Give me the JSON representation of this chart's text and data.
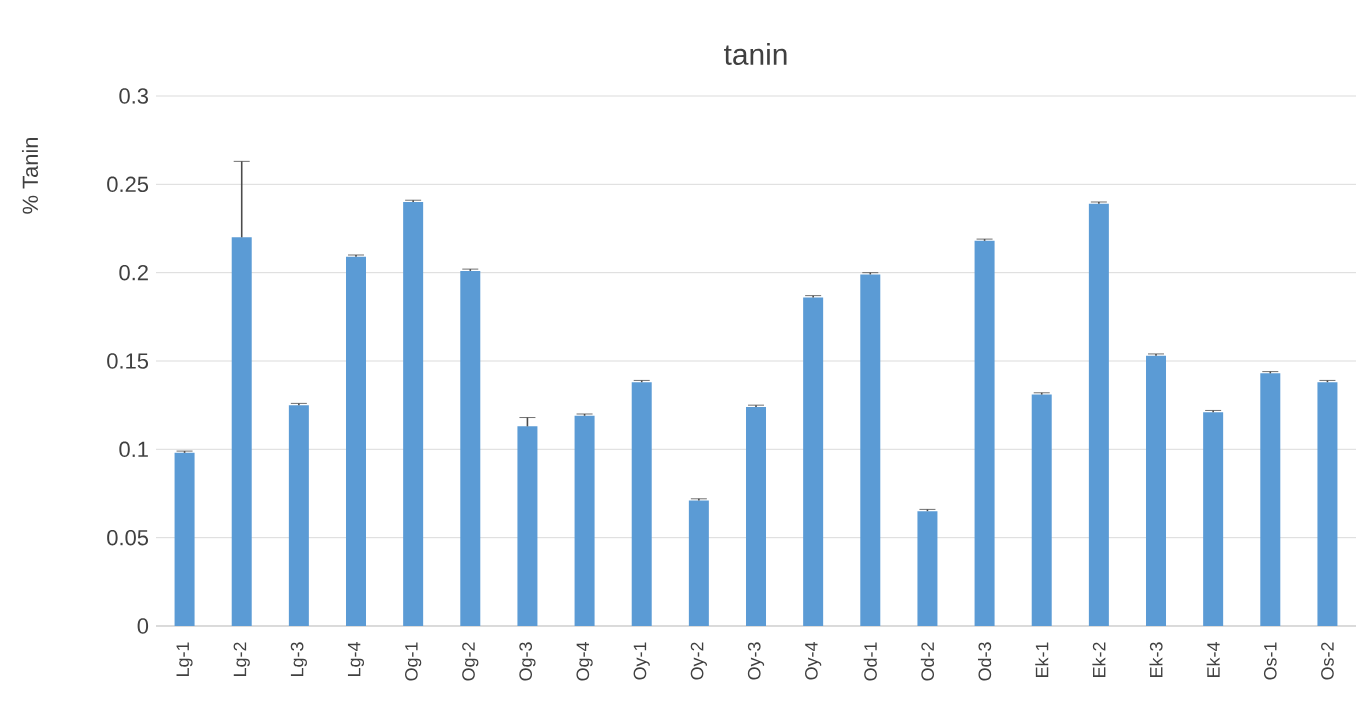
{
  "chart_data": {
    "type": "bar",
    "title": "tanin",
    "ylabel": "% Tanin",
    "categories": [
      "Lg-1",
      "Lg-2",
      "Lg-3",
      "Lg-4",
      "Og-1",
      "Og-2",
      "Og-3",
      "Og-4",
      "Oy-1",
      "Oy-2",
      "Oy-3",
      "Oy-4",
      "Od-1",
      "Od-2",
      "Od-3",
      "Ek-1",
      "Ek-2",
      "Ek-3",
      "Ek-4",
      "Os-1",
      "Os-2"
    ],
    "values": [
      0.098,
      0.22,
      0.125,
      0.209,
      0.24,
      0.201,
      0.113,
      0.119,
      0.138,
      0.071,
      0.124,
      0.186,
      0.199,
      0.065,
      0.218,
      0.131,
      0.239,
      0.153,
      0.121,
      0.143,
      0.138
    ],
    "errors": [
      0.001,
      0.043,
      0.001,
      0.001,
      0.001,
      0.001,
      0.005,
      0.001,
      0.001,
      0.001,
      0.001,
      0.001,
      0.001,
      0.001,
      0.001,
      0.001,
      0.001,
      0.001,
      0.001,
      0.001,
      0.001
    ],
    "color": "#5b9bd5",
    "ylim": [
      0,
      0.3
    ],
    "yticks": [
      0,
      0.05,
      0.1,
      0.15,
      0.2,
      0.25,
      0.3
    ],
    "grid": "y"
  }
}
